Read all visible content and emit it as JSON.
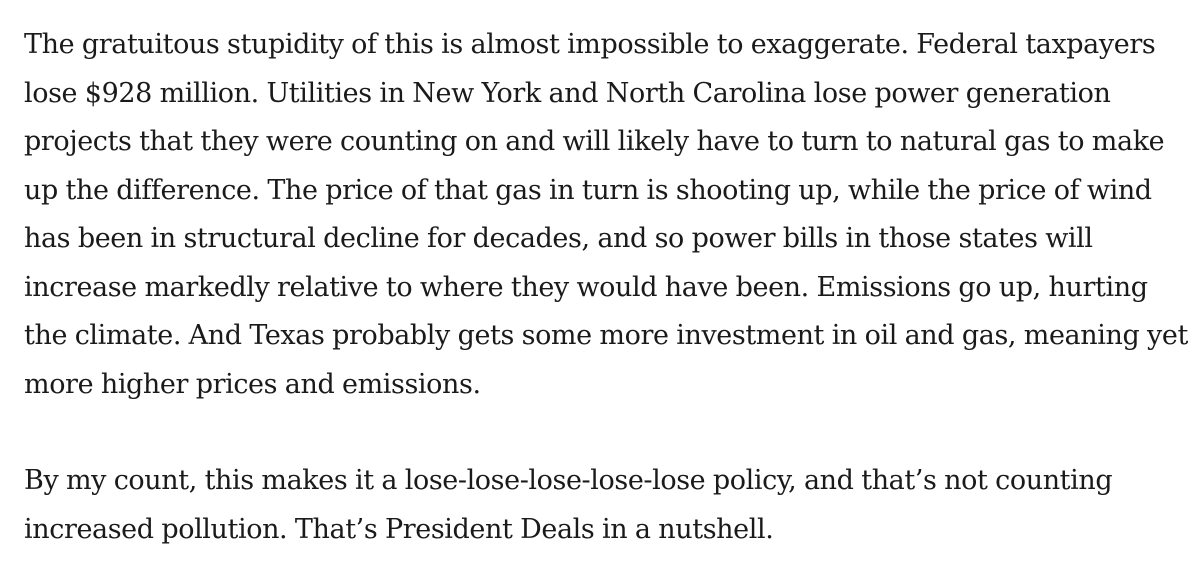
{
  "article": {
    "paragraphs": [
      "The gratuitous stupidity of this is almost impossible to exaggerate. Federal taxpayers lose $928 million. Utilities in New York and North Carolina lose power generation projects that they were counting on and will likely have to turn to natural gas to make up the difference. The price of that gas in turn is shooting up, while the price of wind has been in structural decline for decades, and so power bills in those states will increase markedly relative to where they would have been. Emissions go up, hurting the climate. And Texas probably gets some more investment in oil and gas, meaning yet more higher prices and emissions.",
      "By my count, this makes it a lose-lose-lose-lose-lose policy, and that’s not counting increased pollution. That’s President Deals in a nutshell."
    ]
  }
}
